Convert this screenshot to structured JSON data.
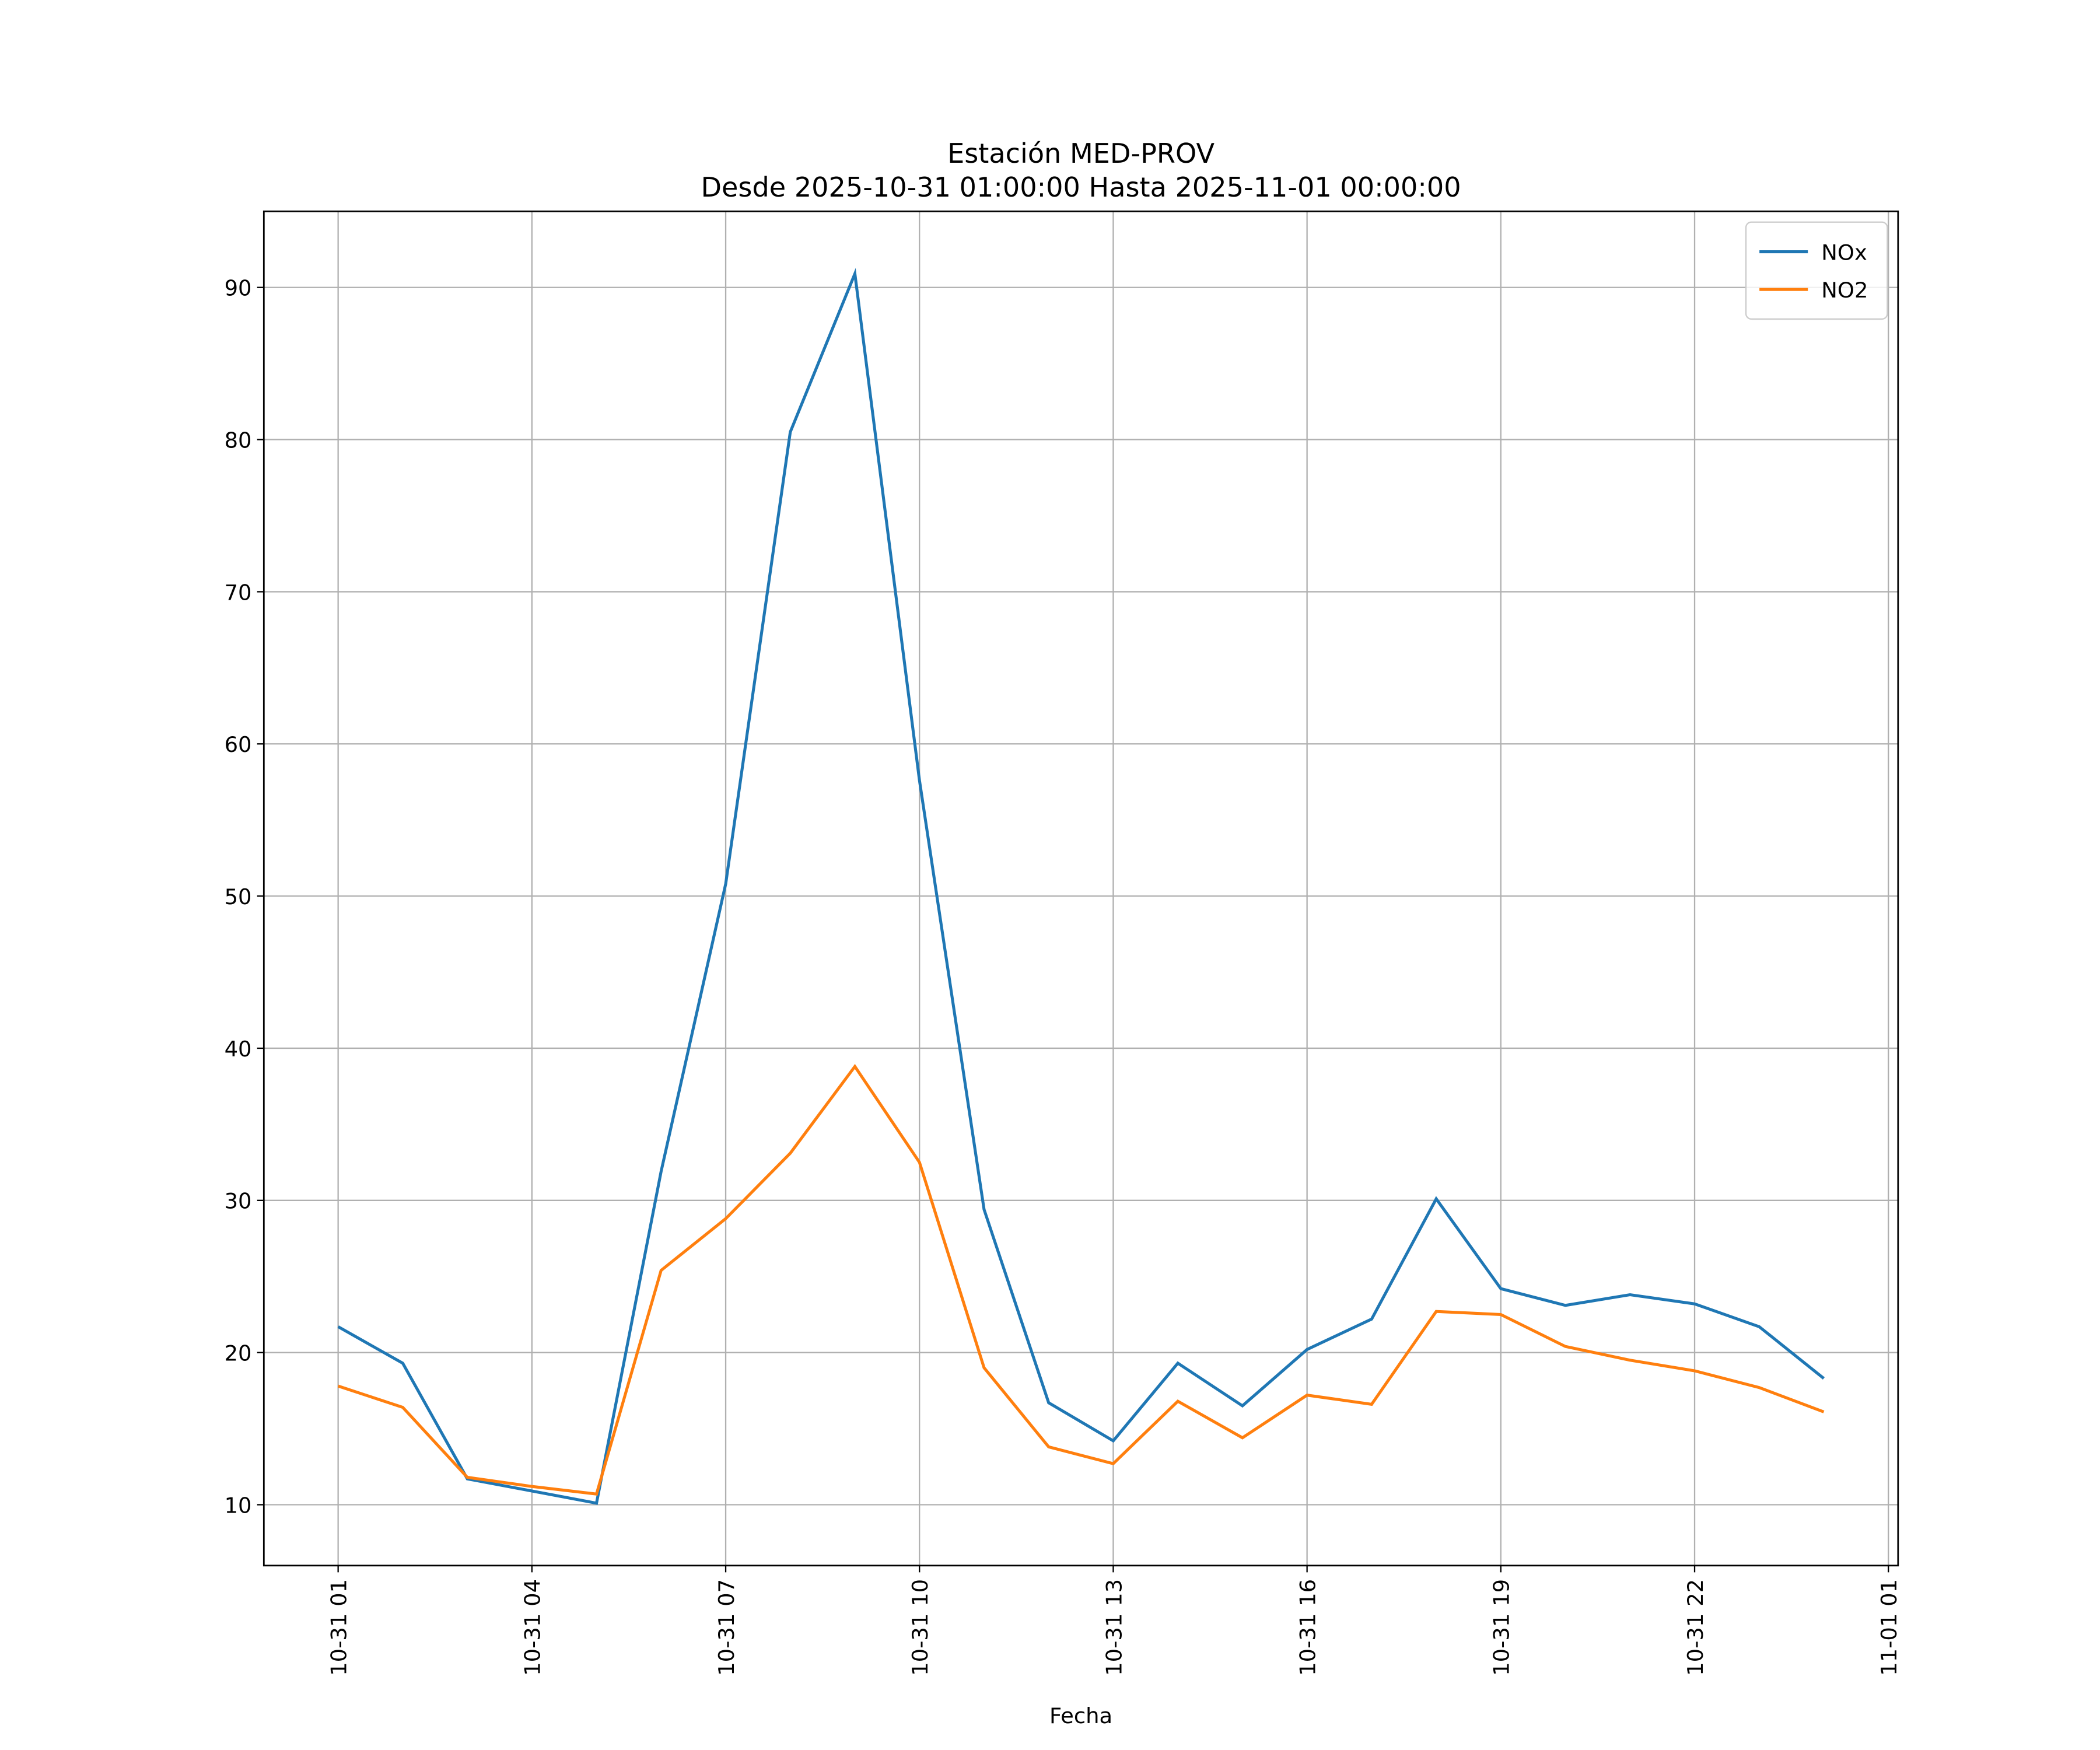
{
  "chart_data": {
    "type": "line",
    "title": "Estación MED-PROV",
    "subtitle": "Desde 2025-10-31 01:00:00 Hasta 2025-11-01 00:00:00",
    "x_label": "Fecha",
    "x": [
      "10-31 01",
      "10-31 02",
      "10-31 03",
      "10-31 04",
      "10-31 05",
      "10-31 06",
      "10-31 07",
      "10-31 08",
      "10-31 09",
      "10-31 10",
      "10-31 11",
      "10-31 12",
      "10-31 13",
      "10-31 14",
      "10-31 15",
      "10-31 16",
      "10-31 17",
      "10-31 18",
      "10-31 19",
      "10-31 20",
      "10-31 21",
      "10-31 22",
      "10-31 23",
      "11-01 00"
    ],
    "series": [
      {
        "name": "NOx",
        "color": "#1f77b4",
        "values": [
          21.7,
          19.3,
          11.7,
          10.9,
          10.1,
          31.9,
          50.8,
          80.5,
          90.9,
          57.6,
          29.4,
          16.7,
          14.2,
          19.3,
          16.5,
          20.2,
          22.2,
          30.1,
          24.2,
          23.1,
          23.8,
          23.2,
          21.7,
          18.3
        ]
      },
      {
        "name": "NO2",
        "color": "#ff7f0e",
        "values": [
          17.8,
          16.4,
          11.8,
          11.2,
          10.7,
          25.4,
          28.8,
          33.1,
          38.8,
          32.5,
          19.0,
          13.8,
          12.7,
          16.8,
          14.4,
          17.2,
          16.6,
          22.7,
          22.5,
          20.4,
          19.5,
          18.8,
          17.7,
          16.1
        ]
      }
    ],
    "xlim": [
      "10-30 23:51",
      "11-01 01:09"
    ],
    "xticks": [
      "10-31 01",
      "10-31 04",
      "10-31 07",
      "10-31 10",
      "10-31 13",
      "10-31 16",
      "10-31 19",
      "10-31 22",
      "11-01 01"
    ],
    "ylim": [
      6.0,
      95.0
    ],
    "yticks": [
      10,
      20,
      30,
      40,
      50,
      60,
      70,
      80,
      90
    ],
    "grid": true,
    "legend": "upper right"
  }
}
